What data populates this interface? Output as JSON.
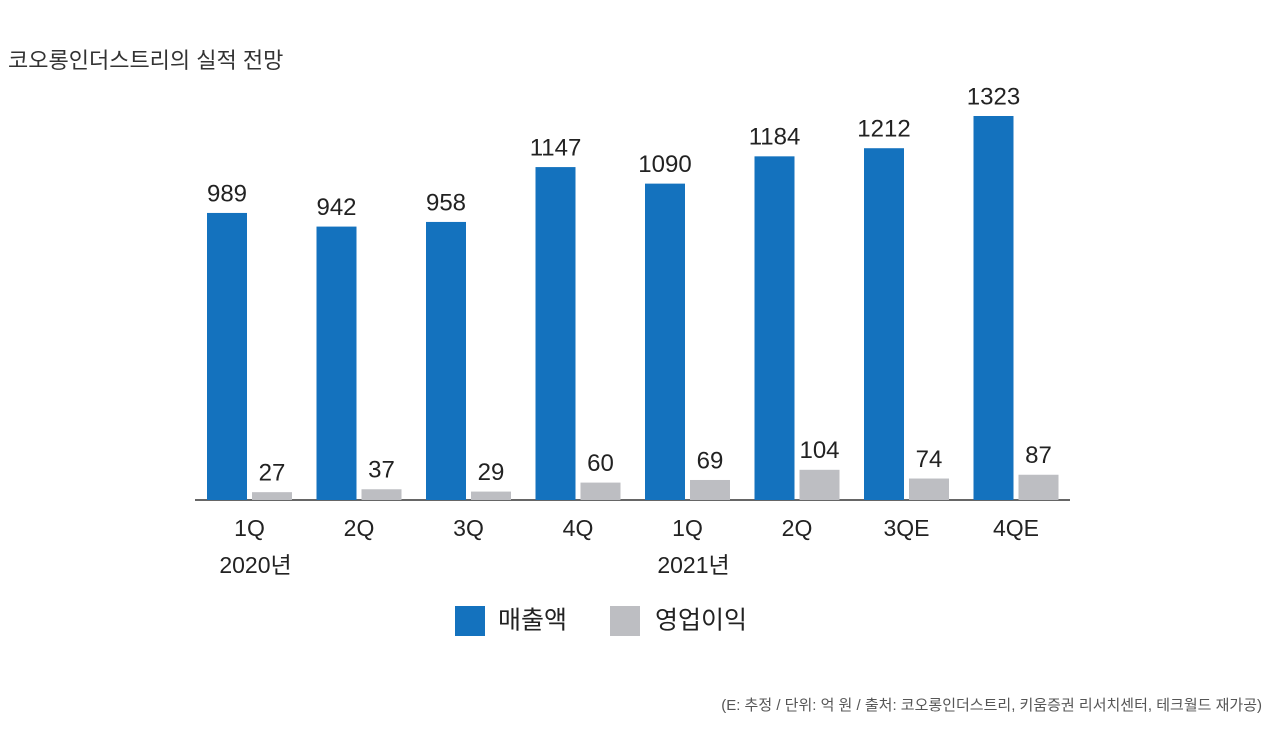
{
  "chart_data": {
    "type": "bar",
    "title": "코오롱인더스트리의 실적 전망",
    "categories": [
      "1Q",
      "2Q",
      "3Q",
      "4Q",
      "1Q",
      "2Q",
      "3QE",
      "4QE"
    ],
    "year_labels": [
      "2020년",
      null,
      null,
      null,
      "2021년",
      null,
      null,
      null
    ],
    "series": [
      {
        "name": "매출액",
        "color": "#1472be",
        "values": [
          989,
          942,
          958,
          1147,
          1090,
          1184,
          1212,
          1323
        ]
      },
      {
        "name": "영업이익",
        "color": "#bdbec2",
        "values": [
          27,
          37,
          29,
          60,
          69,
          104,
          74,
          87
        ]
      }
    ],
    "note": "(E: 추정 / 단위: 억 원 / 출처: 코오롱인더스트리, 키움증권 리서치센터, 테크월드 재가공)"
  }
}
